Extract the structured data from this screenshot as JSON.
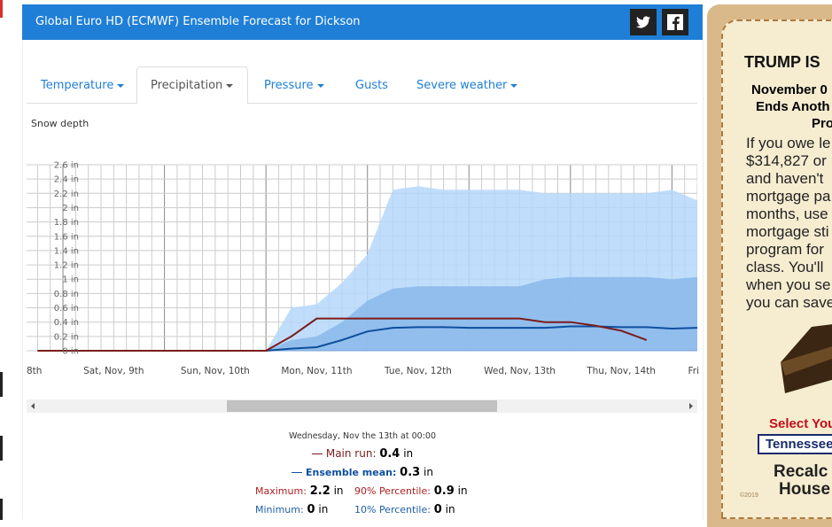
{
  "header": {
    "title": "Global Euro HD (ECMWF) Ensemble Forecast for Dickson"
  },
  "tabs": [
    "Temperature",
    "Precipitation",
    "Pressure",
    "Gusts",
    "Severe weather"
  ],
  "chart_data": {
    "type": "area",
    "title": "Snow depth",
    "unit": "in",
    "x": [
      -54,
      -48,
      -42,
      -36,
      -30,
      -24,
      -18,
      -12,
      -6,
      0,
      6,
      12,
      18,
      24,
      30,
      36,
      42,
      48,
      54,
      60,
      66,
      72,
      78,
      84,
      90,
      96,
      102
    ],
    "series": [
      {
        "name": "Maximum",
        "color": "#b5d8fb",
        "values": [
          0,
          0,
          0,
          0,
          0,
          0,
          0,
          0,
          0,
          0,
          0.6,
          0.65,
          0.95,
          1.35,
          2.25,
          2.3,
          2.25,
          2.25,
          2.25,
          2.25,
          2.2,
          2.2,
          2.2,
          2.2,
          2.2,
          2.25,
          2.1
        ]
      },
      {
        "name": "90% Percentile",
        "color": "#8ab8ea",
        "values": [
          0,
          0,
          0,
          0,
          0,
          0,
          0,
          0,
          0,
          0,
          0.15,
          0.2,
          0.4,
          0.7,
          0.87,
          0.9,
          0.9,
          0.9,
          0.9,
          0.9,
          1.0,
          1.03,
          1.03,
          1.03,
          1.03,
          1.0,
          1.03
        ]
      },
      {
        "name": "10% Percentile",
        "color": "#6f9fd6",
        "values": [
          0,
          0,
          0,
          0,
          0,
          0,
          0,
          0,
          0,
          0,
          0,
          0,
          0,
          0,
          0,
          0,
          0,
          0,
          0,
          0,
          0,
          0,
          0,
          0,
          0,
          0,
          0
        ]
      },
      {
        "name": "Minimum",
        "color": "#6f9fd6",
        "values": [
          0,
          0,
          0,
          0,
          0,
          0,
          0,
          0,
          0,
          0,
          0,
          0,
          0,
          0,
          0,
          0,
          0,
          0,
          0,
          0,
          0,
          0,
          0,
          0,
          0,
          0,
          0
        ]
      },
      {
        "name": "Ensemble mean",
        "color": "#0d4f9e",
        "values": [
          0,
          0,
          0,
          0,
          0,
          0,
          0,
          0,
          0,
          0,
          0.03,
          0.05,
          0.15,
          0.27,
          0.32,
          0.33,
          0.33,
          0.32,
          0.32,
          0.32,
          0.32,
          0.34,
          0.34,
          0.33,
          0.33,
          0.31,
          0.32
        ]
      },
      {
        "name": "Main run",
        "color": "#7b1c1c",
        "values": [
          0,
          0,
          0,
          0,
          0,
          0,
          0,
          0,
          0,
          0,
          0.2,
          0.45,
          0.45,
          0.45,
          0.45,
          0.45,
          0.45,
          0.45,
          0.45,
          0.45,
          0.4,
          0.4,
          0.35,
          0.28,
          0.15,
          null,
          null
        ]
      }
    ],
    "xlim": [
      -56.6,
      102
    ],
    "ylim": [
      0,
      2.6
    ],
    "yticks": [
      {
        "value": 0,
        "label": "0 in"
      },
      {
        "value": 0.2,
        "label": "0.2 in"
      },
      {
        "value": 0.4,
        "label": "0.4 in"
      },
      {
        "value": 0.6,
        "label": "0.6 in"
      },
      {
        "value": 0.8,
        "label": "0.8 in"
      },
      {
        "value": 1,
        "label": "1 in"
      },
      {
        "value": 1.2,
        "label": "1.2 in"
      },
      {
        "value": 1.4,
        "label": "1.4 in"
      },
      {
        "value": 1.6,
        "label": "1.6 in"
      },
      {
        "value": 1.8,
        "label": "1.8 in"
      },
      {
        "value": 2,
        "label": "2 in"
      },
      {
        "value": 2.2,
        "label": "2.2 in"
      },
      {
        "value": 2.4,
        "label": "2.4 in"
      },
      {
        "value": 2.6,
        "label": "2.6 in"
      }
    ],
    "xticks": [
      {
        "value": -60,
        "label": "8th"
      },
      {
        "value": -36,
        "label": "Sat, Nov, 9th"
      },
      {
        "value": -12,
        "label": "Sun, Nov, 10th"
      },
      {
        "value": 12,
        "label": "Mon, Nov, 11th"
      },
      {
        "value": 36,
        "label": "Tue, Nov, 12th"
      },
      {
        "value": 60,
        "label": "Wed, Nov, 13th"
      },
      {
        "value": 84,
        "label": "Thu, Nov, 14th"
      },
      {
        "value": 108,
        "label": "Fri"
      }
    ],
    "grid": true
  },
  "summary": {
    "time": "Wednesday, Nov the 13th at 00:00",
    "items": [
      {
        "label": "Main run:",
        "value": 0.4
      },
      {
        "label": "Ensemble mean:",
        "value": 0.3
      },
      {
        "label": "Maximum:",
        "value": 2.2
      },
      {
        "label": "90% Percentile:",
        "value": 0.9
      },
      {
        "label": "Minimum:",
        "value": 0
      },
      {
        "label": "10% Percentile:",
        "value": 0
      }
    ]
  },
  "ad": {
    "headline": "TRUMP IS",
    "subhead": [
      "November 0",
      "Ends Anoth",
      "Pro"
    ],
    "body": [
      "If you owe le",
      "$314,827 or",
      "and haven't",
      "mortgage pa",
      "months, use",
      "mortgage sti",
      "program for",
      "class. You'll",
      "when you se",
      "you can save"
    ],
    "select_label": "Select You",
    "select_value": "Tennessee",
    "button": [
      "Recalc",
      "House"
    ],
    "copyright": "©2019"
  }
}
